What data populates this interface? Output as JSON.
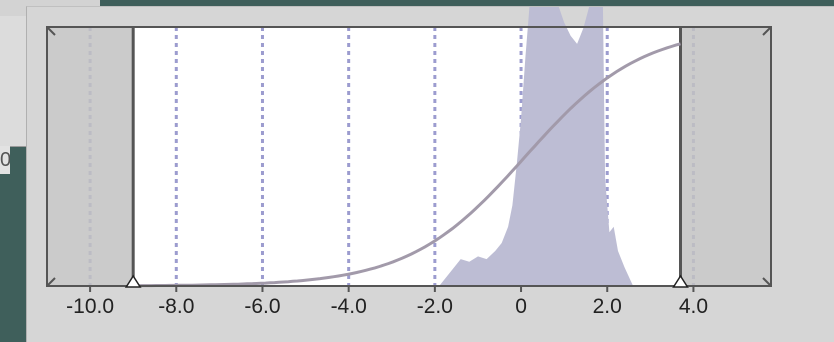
{
  "background_color": "#3f5f5b",
  "background_panel": {
    "edge_digit": "0"
  },
  "editor": {
    "colors": {
      "window": "#d6d6d6",
      "plot_background": "#ffffff",
      "clip_region": "#c2c2c2",
      "histogram": "#bdbdd4",
      "grid_line": "#9c9ccf",
      "curve": "#a29aaa",
      "frame": "#555555"
    },
    "range": {
      "x_min": -11.0,
      "x_max": 5.8,
      "low_clip": -9.0,
      "high_clip": 3.7
    },
    "grid_values": [
      -10,
      -8,
      -6,
      -4,
      -2,
      0,
      2,
      4
    ],
    "axis_ticks": [
      "-10.0",
      "-8.0",
      "-6.0",
      "-4.0",
      "-2.0",
      "0",
      "2.0",
      "4.0"
    ],
    "axis_tick_values": [
      -10,
      -8,
      -6,
      -4,
      -2,
      0,
      2,
      4
    ],
    "curve": {
      "type": "sigmoid",
      "center": 0.1,
      "scale": 1.35,
      "samples": 120
    },
    "histogram": [
      [
        -1.9,
        0.0
      ],
      [
        -1.6,
        0.06
      ],
      [
        -1.4,
        0.1
      ],
      [
        -1.2,
        0.09
      ],
      [
        -1.0,
        0.11
      ],
      [
        -0.8,
        0.1
      ],
      [
        -0.6,
        0.13
      ],
      [
        -0.45,
        0.16
      ],
      [
        -0.3,
        0.22
      ],
      [
        -0.2,
        0.3
      ],
      [
        -0.1,
        0.45
      ],
      [
        0.0,
        0.62
      ],
      [
        0.1,
        0.85
      ],
      [
        0.2,
        1.05
      ],
      [
        0.35,
        1.05
      ],
      [
        0.6,
        1.05
      ],
      [
        0.85,
        1.05
      ],
      [
        1.0,
        0.98
      ],
      [
        1.15,
        0.93
      ],
      [
        1.3,
        0.9
      ],
      [
        1.45,
        0.96
      ],
      [
        1.6,
        1.05
      ],
      [
        1.75,
        1.05
      ],
      [
        1.9,
        1.05
      ],
      [
        1.95,
        0.4
      ],
      [
        2.05,
        0.2
      ],
      [
        2.15,
        0.22
      ],
      [
        2.25,
        0.13
      ],
      [
        2.4,
        0.07
      ],
      [
        2.6,
        0.0
      ]
    ]
  }
}
